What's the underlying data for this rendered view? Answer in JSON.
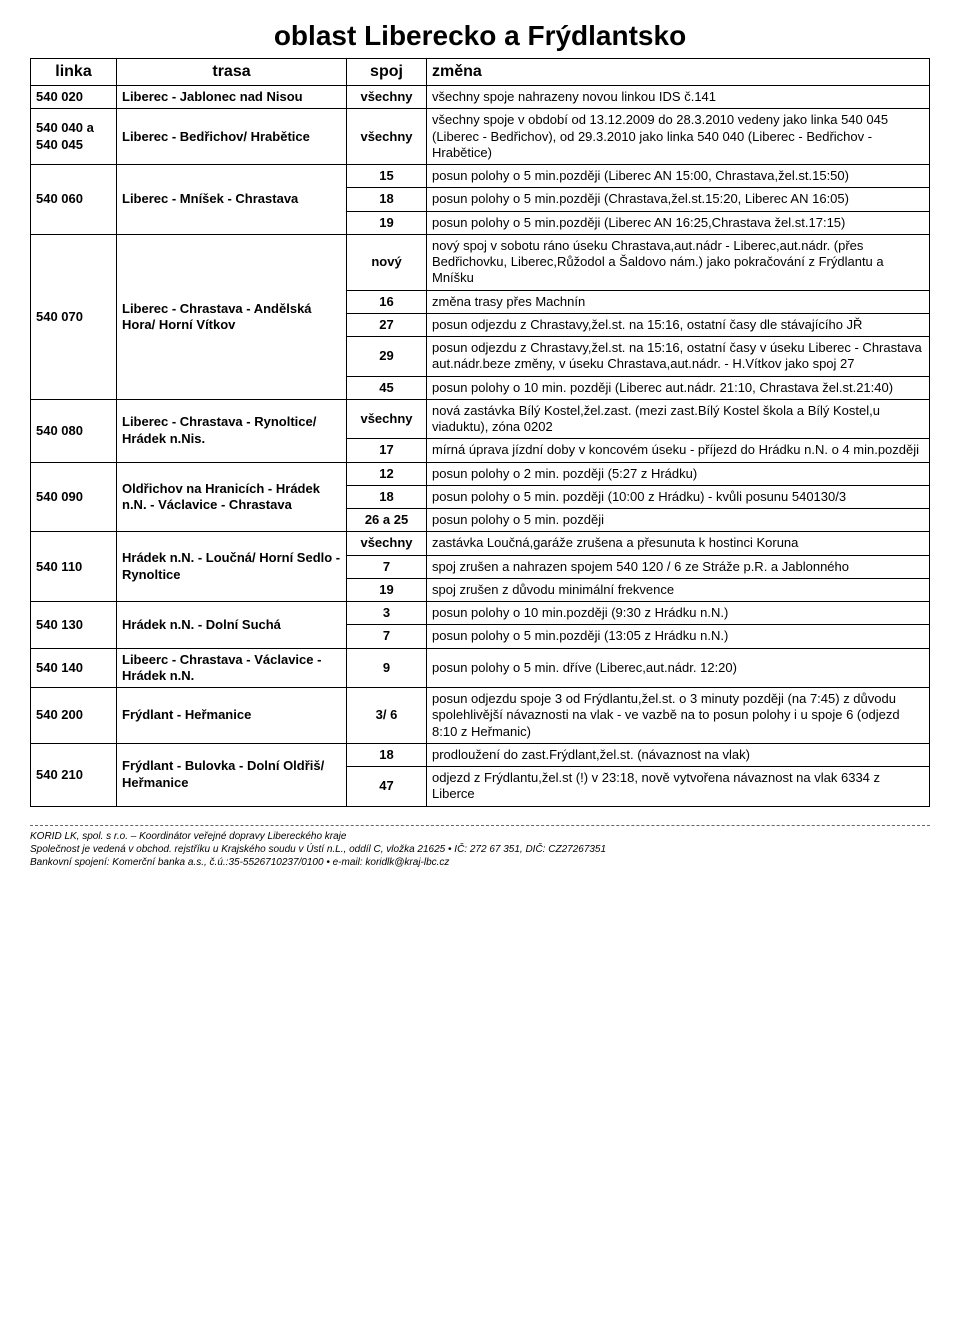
{
  "title": "oblast Liberecko a Frýdlantsko",
  "headers": {
    "linka": "linka",
    "trasa": "trasa",
    "spoj": "spoj",
    "zmena": "změna"
  },
  "rows": {
    "r1": {
      "linka": "540 020",
      "trasa": "Liberec - Jablonec nad Nisou",
      "spoj": "všechny",
      "zmena": "všechny spoje nahrazeny novou linkou IDS č.141"
    },
    "r2": {
      "linka": "540 040 a 540 045",
      "trasa": "Liberec - Bedřichov/ Hrabětice",
      "spoj": "všechny",
      "zmena": "všechny spoje v období od 13.12.2009 do 28.3.2010 vedeny jako linka 540 045 (Liberec - Bedřichov), od 29.3.2010 jako linka 540 040 (Liberec - Bedřichov - Hrabětice)"
    },
    "r3": {
      "linka": "540 060",
      "trasa": "Liberec - Mníšek - Chrastava",
      "spoj": "15",
      "zmena": "posun polohy o 5 min.později (Liberec AN 15:00, Chrastava,žel.st.15:50)"
    },
    "r4": {
      "spoj": "18",
      "zmena": "posun polohy o 5 min.později (Chrastava,žel.st.15:20, Liberec AN 16:05)"
    },
    "r5": {
      "spoj": "19",
      "zmena": "posun polohy o 5 min.později (Liberec AN 16:25,Chrastava žel.st.17:15)"
    },
    "r6": {
      "linka": "540 070",
      "trasa": "Liberec - Chrastava - Andělská Hora/ Horní Vítkov",
      "spoj": "nový",
      "zmena": "nový spoj v sobotu ráno úseku Chrastava,aut.nádr - Liberec,aut.nádr. (přes Bedřichovku, Liberec,Růžodol a Šaldovo nám.) jako pokračování z Frýdlantu a Mníšku"
    },
    "r7": {
      "spoj": "16",
      "zmena": "změna trasy přes Machnín"
    },
    "r8": {
      "spoj": "27",
      "zmena": "posun odjezdu z Chrastavy,žel.st. na 15:16, ostatní časy dle stávajícího JŘ"
    },
    "r9": {
      "spoj": "29",
      "zmena": "posun odjezdu z Chrastavy,žel.st. na 15:16, ostatní časy v úseku Liberec - Chrastava aut.nádr.beze změny, v úseku Chrastava,aut.nádr. - H.Vítkov jako spoj 27"
    },
    "r10": {
      "spoj": "45",
      "zmena": "posun polohy o 10 min. později (Liberec aut.nádr. 21:10, Chrastava žel.st.21:40)"
    },
    "r11": {
      "linka": "540 080",
      "trasa": "Liberec - Chrastava - Rynoltice/ Hrádek n.Nis.",
      "spoj": "všechny",
      "zmena": "nová zastávka Bílý Kostel,žel.zast. (mezi zast.Bílý Kostel škola a Bílý Kostel,u viaduktu), zóna 0202"
    },
    "r12": {
      "spoj": "17",
      "zmena": "mírná úprava jízdní doby v koncovém úseku  - příjezd do Hrádku n.N. o 4 min.později"
    },
    "r13": {
      "linka": "540 090",
      "trasa": "Oldřichov na Hranicích - Hrádek n.N. - Václavice - Chrastava",
      "spoj": "12",
      "zmena": "posun polohy o 2 min. později (5:27 z Hrádku)"
    },
    "r14": {
      "spoj": "18",
      "zmena": "posun polohy o 5 min. později (10:00 z Hrádku) - kvůli posunu 540130/3"
    },
    "r15": {
      "spoj": "26 a 25",
      "zmena": "posun polohy o 5 min. později"
    },
    "r16": {
      "linka": "540 110",
      "trasa": "Hrádek n.N. - Loučná/ Horní Sedlo - Rynoltice",
      "spoj": "všechny",
      "zmena": "zastávka Loučná,garáže zrušena a přesunuta k hostinci Koruna"
    },
    "r17": {
      "spoj": "7",
      "zmena": "spoj zrušen a nahrazen spojem 540 120 / 6 ze Stráže p.R. a Jablonného"
    },
    "r18": {
      "spoj": "19",
      "zmena": "spoj zrušen z důvodu minimální frekvence"
    },
    "r19": {
      "linka": "540 130",
      "trasa": "Hrádek n.N. - Dolní Suchá",
      "spoj": "3",
      "zmena": "posun polohy o 10 min.později (9:30 z Hrádku n.N.)"
    },
    "r20": {
      "spoj": "7",
      "zmena": "posun polohy o 5 min.později (13:05 z Hrádku n.N.)"
    },
    "r21": {
      "linka": "540 140",
      "trasa": "Libeerc - Chrastava - Václavice - Hrádek n.N.",
      "spoj": "9",
      "zmena": "posun polohy o 5 min. dříve (Liberec,aut.nádr. 12:20)"
    },
    "r22": {
      "linka": "540 200",
      "trasa": "Frýdlant - Heřmanice",
      "spoj": "3/ 6",
      "zmena": "posun odjezdu spoje 3 od Frýdlantu,žel.st. o 3 minuty později (na 7:45) z důvodu spolehlivější návaznosti na vlak - ve vazbě na to posun polohy i u spoje 6 (odjezd 8:10 z Heřmanic)"
    },
    "r23": {
      "linka": "540 210",
      "trasa": "Frýdlant - Bulovka - Dolní Oldřiš/ Heřmanice",
      "spoj": "18",
      "zmena": "prodloužení do zast.Frýdlant,žel.st. (návaznost na vlak)"
    },
    "r24": {
      "spoj": "47",
      "zmena": "odjezd z Frýdlantu,žel.st (!) v 23:18, nově vytvořena návaznost na vlak 6334 z Liberce"
    }
  },
  "footer": {
    "l1": "KORID LK, spol. s r.o. – Koordinátor veřejné dopravy Libereckého kraje",
    "l2": "Společnost je vedená v obchod. rejstříku u Krajského soudu v Ústí n.L., oddíl C, vložka 21625 • IČ: 272 67 351, DIČ: CZ27267351",
    "l3": "Bankovní spojení: Komerční banka a.s., č.ú.:35-5526710237/0100 • e-mail: koridlk@kraj-lbc.cz"
  }
}
